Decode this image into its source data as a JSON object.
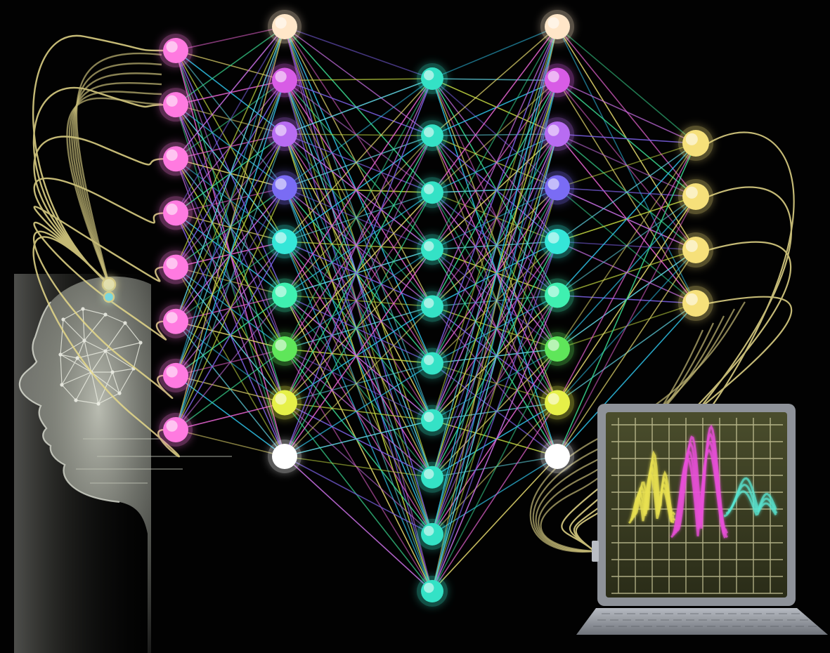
{
  "illustration": {
    "subject": "neural-network",
    "palette": {
      "background": "#020202",
      "head_light": "#d8dccf",
      "head_dark": "#141414",
      "wire": "#e6d98a",
      "laptop_frame": "#8e9299",
      "laptop_screen": "#3a3d22",
      "grid": "#d9d6a6"
    },
    "layers": [
      {
        "name": "input-layer",
        "node_count": 8,
        "colors": [
          "#ff7ae0"
        ]
      },
      {
        "name": "hidden-layer-1",
        "node_count": 9,
        "colors": [
          "#ffe6c8",
          "#d85ce6",
          "#b86cf2",
          "#7a6cf4",
          "#35e6d8",
          "#3ff0b0",
          "#5fe65a",
          "#e6f048",
          "#ffffff"
        ]
      },
      {
        "name": "hidden-layer-2",
        "node_count": 10,
        "colors": [
          "#34e2c6"
        ]
      },
      {
        "name": "hidden-layer-3",
        "node_count": 9,
        "colors": [
          "#ffe6c8",
          "#d85ce6",
          "#b86cf2",
          "#7a6cf4",
          "#35e6d8",
          "#3ff0b0",
          "#5fe65a",
          "#e6f048",
          "#ffffff"
        ]
      },
      {
        "name": "output-layer",
        "node_count": 4,
        "colors": [
          "#f6e07a"
        ]
      }
    ],
    "edge_colors": [
      "#ff6ee8",
      "#8a6cff",
      "#33d6ff",
      "#3ff0a0",
      "#d8f048",
      "#fff27a",
      "#e07bff",
      "#6cf0ff"
    ],
    "waveform": [
      {
        "name": "yellow",
        "color": "#e8e050"
      },
      {
        "name": "magenta",
        "color": "#e84fd8"
      },
      {
        "name": "cyan",
        "color": "#59e6d2"
      }
    ]
  }
}
